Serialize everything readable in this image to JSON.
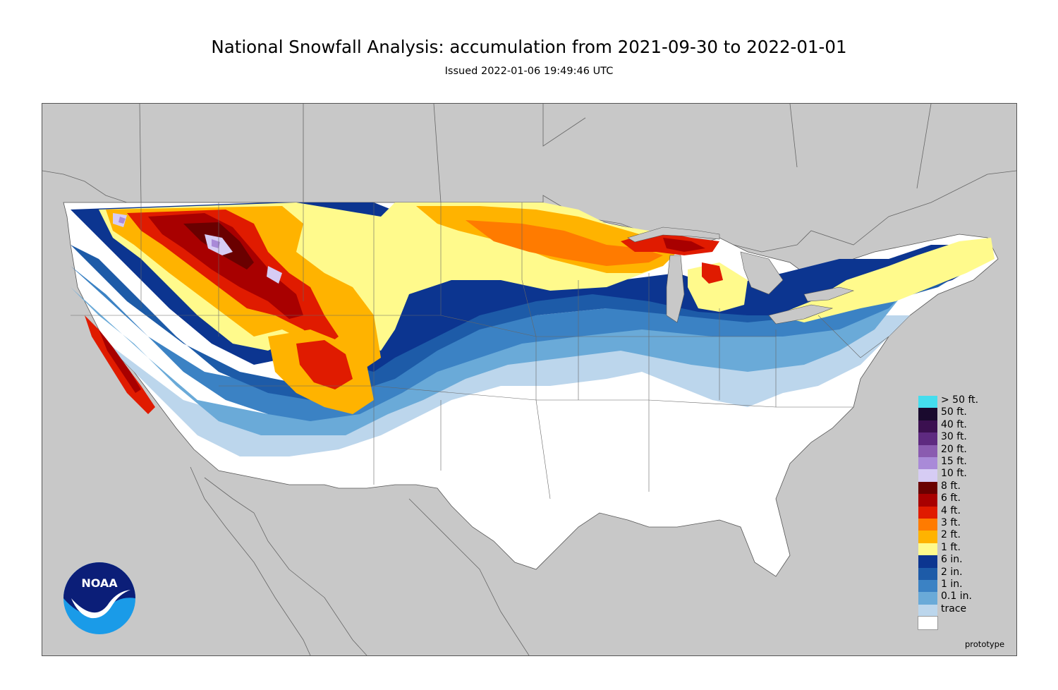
{
  "title": "National Snowfall Analysis: accumulation from 2021-09-30 to 2022-01-01",
  "subtitle": "Issued 2022-01-06 19:49:46 UTC",
  "watermark": "prototype",
  "logo": {
    "text": "NOAA",
    "icon": "noaa-logo"
  },
  "map": {
    "region": "Contiguous United States",
    "background_color": "#c8c8c8",
    "land_color": "#ffffff",
    "border_color": "#555555"
  },
  "legend": [
    {
      "label": "> 50 ft.",
      "color": "#44ddee"
    },
    {
      "label": "50 ft.",
      "color": "#1a0a2e"
    },
    {
      "label": "40 ft.",
      "color": "#3b1050"
    },
    {
      "label": "30 ft.",
      "color": "#5e2a80"
    },
    {
      "label": "20 ft.",
      "color": "#8a5bb0"
    },
    {
      "label": "15 ft.",
      "color": "#a98ad8"
    },
    {
      "label": "10 ft.",
      "color": "#d6ccf4"
    },
    {
      "label": "8 ft.",
      "color": "#6a0000"
    },
    {
      "label": "6 ft.",
      "color": "#a80000"
    },
    {
      "label": "4 ft.",
      "color": "#e01b00"
    },
    {
      "label": "3 ft.",
      "color": "#ff7b00"
    },
    {
      "label": "2 ft.",
      "color": "#ffb300"
    },
    {
      "label": "1 ft.",
      "color": "#fffa8c"
    },
    {
      "label": "6 in.",
      "color": "#0c3590"
    },
    {
      "label": "2 in.",
      "color": "#1d5ba8"
    },
    {
      "label": "1 in.",
      "color": "#3b82c4"
    },
    {
      "label": "0.1 in.",
      "color": "#6aaad8"
    },
    {
      "label": "trace",
      "color": "#bcd6ec"
    },
    {
      "label": "",
      "color": "#ffffff"
    }
  ]
}
